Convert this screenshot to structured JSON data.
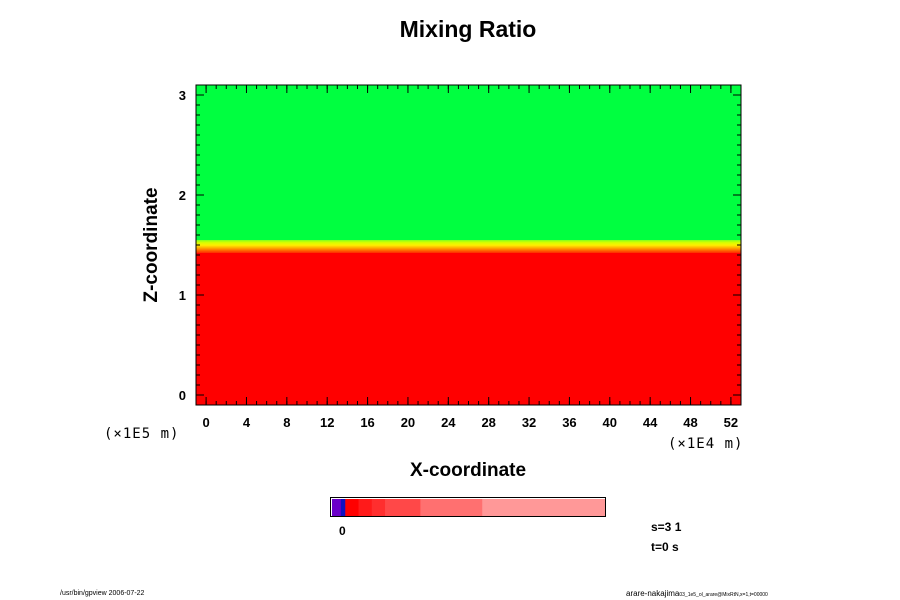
{
  "chart_data": {
    "type": "heatmap",
    "title": "Mixing Ratio",
    "xlabel": "X-coordinate",
    "ylabel": "Z-coordinate",
    "x_scale_note": "(×1E4 m)",
    "y_scale_note": "(×1E5 m)",
    "xlim": [
      -1,
      53
    ],
    "ylim": [
      -0.1,
      3.1
    ],
    "x_ticks": [
      0,
      4,
      8,
      12,
      16,
      20,
      24,
      28,
      32,
      36,
      40,
      44,
      48,
      52
    ],
    "y_ticks": [
      0,
      1,
      2,
      3
    ],
    "field": {
      "upper_region": {
        "z_range": [
          1.55,
          3.1
        ],
        "color": "#00ff40"
      },
      "lower_region": {
        "z_range": [
          -0.1,
          1.42
        ],
        "color": "#ff0000"
      },
      "transition": {
        "z_range": [
          1.42,
          1.55
        ],
        "colors": [
          "#ff2a00",
          "#ff6a00",
          "#ffb000",
          "#ffee00",
          "#d8ff00",
          "#80ff20"
        ]
      }
    },
    "colorbar": {
      "tick_label": "0",
      "segments": [
        {
          "color": "#6a00c8",
          "weight": 1
        },
        {
          "color": "#1010c0",
          "weight": 0.5
        },
        {
          "color": "#ff0000",
          "weight": 1.5
        },
        {
          "color": "#ff1a1a",
          "weight": 1.5
        },
        {
          "color": "#ff2e2e",
          "weight": 1.5
        },
        {
          "color": "#ff4848",
          "weight": 4
        },
        {
          "color": "#ff7070",
          "weight": 7
        },
        {
          "color": "#ff9898",
          "weight": 14
        }
      ]
    }
  },
  "info": {
    "s": "s=3 1",
    "t": "t=0 s"
  },
  "footer": {
    "left": "/usr/bin/gpview 2006-07-22",
    "right_main": "arare-nakajima",
    "right_small": "03_1e5_ol_arare@MixRtN,x=1,t=00000"
  }
}
